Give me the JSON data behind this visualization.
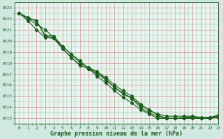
{
  "title": "Graphe pression niveau de la mer (hPa)",
  "bg_color": "#d0e8e0",
  "plot_bg_color": "#e8f4f0",
  "line_color": "#1a5c1a",
  "xlim": [
    -0.5,
    23
  ],
  "ylim": [
    1012.5,
    1023.5
  ],
  "xticks": [
    0,
    1,
    2,
    3,
    4,
    5,
    6,
    7,
    8,
    9,
    10,
    11,
    12,
    13,
    14,
    15,
    16,
    17,
    18,
    19,
    20,
    21,
    22,
    23
  ],
  "yticks": [
    1013,
    1014,
    1015,
    1016,
    1017,
    1018,
    1019,
    1020,
    1021,
    1022,
    1023
  ],
  "series": [
    [
      1022.5,
      1022.0,
      1021.5,
      1021.0,
      1020.3,
      1019.5,
      1018.8,
      1018.2,
      1017.5,
      1017.0,
      1016.5,
      1015.8,
      1015.2,
      1014.8,
      1014.2,
      1013.8,
      1013.3,
      1013.0,
      1013.0,
      1013.1,
      1013.1,
      1013.0,
      1013.1,
      1013.2
    ],
    [
      1022.5,
      1021.8,
      1021.0,
      1020.3,
      1020.2,
      1019.3,
      1018.5,
      1017.8,
      1017.5,
      1016.8,
      1016.2,
      1015.5,
      1014.9,
      1014.4,
      1013.8,
      1013.4,
      1013.0,
      1013.0,
      1013.0,
      1013.0,
      1013.1,
      1013.0,
      1013.0,
      1013.1
    ],
    [
      1022.5,
      1022.0,
      1021.8,
      1020.4,
      1020.3,
      1019.3,
      1018.5,
      1017.8,
      1017.5,
      1017.2,
      1016.5,
      1015.8,
      1015.3,
      1014.8,
      1014.0,
      1013.5,
      1013.2,
      1013.0,
      1013.0,
      1013.0,
      1013.0,
      1013.0,
      1013.0,
      1013.2
    ],
    [
      1022.5,
      1022.1,
      1021.8,
      1020.5,
      1020.4,
      1019.5,
      1018.8,
      1018.0,
      1017.6,
      1017.2,
      1016.7,
      1016.0,
      1015.5,
      1015.0,
      1014.3,
      1013.7,
      1013.4,
      1013.2,
      1013.2,
      1013.2,
      1013.2,
      1013.1,
      1013.1,
      1013.3
    ]
  ],
  "grid_major_color": "#d08080",
  "grid_minor_color": "#90c890",
  "tick_label_color": "#1a5c1a",
  "tick_fontsize": 4.5,
  "xlabel_fontsize": 6.0,
  "marker": "D",
  "markersize": 2.2,
  "linewidth": 0.8
}
